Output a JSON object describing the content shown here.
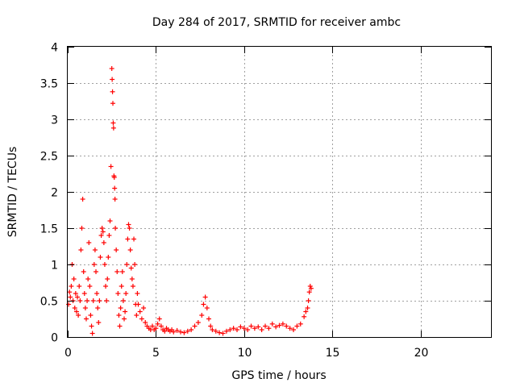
{
  "chart_data": {
    "type": "scatter",
    "title": "Day 284 of 2017, SRMTID for receiver ambc",
    "xlabel": "GPS time / hours",
    "ylabel": "SRMTID / TECUs",
    "xlim": [
      0,
      24
    ],
    "ylim": [
      0,
      4
    ],
    "xticks": [
      0,
      5,
      10,
      15,
      20
    ],
    "yticks": [
      0,
      0.5,
      1,
      1.5,
      2,
      2.5,
      3,
      3.5,
      4
    ],
    "grid": true,
    "marker": "+",
    "color": "#ff0000",
    "series": [
      {
        "name": "SRMTID",
        "points": [
          [
            0.05,
            0.45
          ],
          [
            0.1,
            0.62
          ],
          [
            0.15,
            0.55
          ],
          [
            0.2,
            0.7
          ],
          [
            0.25,
            1.0
          ],
          [
            0.3,
            0.5
          ],
          [
            0.35,
            0.8
          ],
          [
            0.4,
            0.4
          ],
          [
            0.45,
            0.6
          ],
          [
            0.5,
            0.35
          ],
          [
            0.55,
            0.55
          ],
          [
            0.6,
            0.3
          ],
          [
            0.65,
            0.7
          ],
          [
            0.7,
            0.5
          ],
          [
            0.75,
            1.2
          ],
          [
            0.8,
            1.5
          ],
          [
            0.85,
            1.9
          ],
          [
            0.9,
            0.9
          ],
          [
            0.95,
            0.6
          ],
          [
            1.0,
            0.4
          ],
          [
            1.05,
            0.25
          ],
          [
            1.1,
            0.5
          ],
          [
            1.15,
            0.8
          ],
          [
            1.2,
            1.3
          ],
          [
            1.25,
            0.7
          ],
          [
            1.3,
            0.3
          ],
          [
            1.35,
            0.15
          ],
          [
            1.4,
            0.05
          ],
          [
            1.45,
            0.5
          ],
          [
            1.5,
            1.0
          ],
          [
            1.55,
            1.2
          ],
          [
            1.6,
            0.9
          ],
          [
            1.65,
            0.6
          ],
          [
            1.7,
            0.4
          ],
          [
            1.75,
            0.2
          ],
          [
            1.8,
            0.5
          ],
          [
            1.85,
            1.1
          ],
          [
            1.9,
            1.4
          ],
          [
            1.95,
            1.5
          ],
          [
            2.0,
            1.45
          ],
          [
            2.05,
            1.3
          ],
          [
            2.1,
            1.0
          ],
          [
            2.15,
            0.7
          ],
          [
            2.2,
            0.5
          ],
          [
            2.25,
            0.8
          ],
          [
            2.3,
            1.1
          ],
          [
            2.35,
            1.4
          ],
          [
            2.4,
            1.6
          ],
          [
            2.45,
            2.35
          ],
          [
            2.5,
            3.7
          ],
          [
            2.52,
            3.55
          ],
          [
            2.54,
            3.38
          ],
          [
            2.56,
            3.22
          ],
          [
            2.58,
            2.95
          ],
          [
            2.6,
            2.88
          ],
          [
            2.62,
            2.22
          ],
          [
            2.64,
            2.2
          ],
          [
            2.66,
            2.05
          ],
          [
            2.68,
            1.9
          ],
          [
            2.7,
            1.5
          ],
          [
            2.75,
            1.2
          ],
          [
            2.8,
            0.9
          ],
          [
            2.85,
            0.6
          ],
          [
            2.9,
            0.3
          ],
          [
            2.95,
            0.15
          ],
          [
            3.0,
            0.4
          ],
          [
            3.05,
            0.7
          ],
          [
            3.1,
            0.9
          ],
          [
            3.15,
            0.5
          ],
          [
            3.2,
            0.25
          ],
          [
            3.25,
            0.35
          ],
          [
            3.3,
            0.6
          ],
          [
            3.35,
            1.0
          ],
          [
            3.4,
            1.35
          ],
          [
            3.45,
            1.55
          ],
          [
            3.5,
            1.5
          ],
          [
            3.55,
            1.2
          ],
          [
            3.6,
            0.95
          ],
          [
            3.65,
            0.8
          ],
          [
            3.7,
            0.7
          ],
          [
            3.75,
            1.35
          ],
          [
            3.8,
            1.0
          ],
          [
            3.85,
            0.45
          ],
          [
            3.9,
            0.3
          ],
          [
            3.95,
            0.6
          ],
          [
            4.0,
            0.45
          ],
          [
            4.1,
            0.35
          ],
          [
            4.2,
            0.25
          ],
          [
            4.3,
            0.4
          ],
          [
            4.4,
            0.2
          ],
          [
            4.5,
            0.15
          ],
          [
            4.6,
            0.12
          ],
          [
            4.7,
            0.1
          ],
          [
            4.8,
            0.15
          ],
          [
            4.9,
            0.1
          ],
          [
            5.0,
            0.12
          ],
          [
            5.1,
            0.18
          ],
          [
            5.2,
            0.25
          ],
          [
            5.3,
            0.15
          ],
          [
            5.4,
            0.1
          ],
          [
            5.5,
            0.08
          ],
          [
            5.6,
            0.12
          ],
          [
            5.7,
            0.1
          ],
          [
            5.8,
            0.08
          ],
          [
            5.9,
            0.1
          ],
          [
            6.0,
            0.07
          ],
          [
            6.2,
            0.09
          ],
          [
            6.4,
            0.07
          ],
          [
            6.6,
            0.06
          ],
          [
            6.8,
            0.08
          ],
          [
            7.0,
            0.1
          ],
          [
            7.2,
            0.15
          ],
          [
            7.4,
            0.2
          ],
          [
            7.6,
            0.3
          ],
          [
            7.7,
            0.45
          ],
          [
            7.8,
            0.55
          ],
          [
            7.9,
            0.4
          ],
          [
            8.0,
            0.25
          ],
          [
            8.1,
            0.15
          ],
          [
            8.2,
            0.1
          ],
          [
            8.4,
            0.08
          ],
          [
            8.6,
            0.06
          ],
          [
            8.8,
            0.05
          ],
          [
            9.0,
            0.08
          ],
          [
            9.2,
            0.1
          ],
          [
            9.4,
            0.12
          ],
          [
            9.6,
            0.1
          ],
          [
            9.8,
            0.14
          ],
          [
            10.0,
            0.12
          ],
          [
            10.2,
            0.1
          ],
          [
            10.4,
            0.15
          ],
          [
            10.6,
            0.12
          ],
          [
            10.8,
            0.14
          ],
          [
            11.0,
            0.1
          ],
          [
            11.2,
            0.15
          ],
          [
            11.4,
            0.12
          ],
          [
            11.6,
            0.18
          ],
          [
            11.8,
            0.14
          ],
          [
            12.0,
            0.16
          ],
          [
            12.2,
            0.18
          ],
          [
            12.4,
            0.15
          ],
          [
            12.6,
            0.12
          ],
          [
            12.8,
            0.1
          ],
          [
            13.0,
            0.15
          ],
          [
            13.2,
            0.18
          ],
          [
            13.4,
            0.28
          ],
          [
            13.5,
            0.35
          ],
          [
            13.6,
            0.4
          ],
          [
            13.65,
            0.5
          ],
          [
            13.7,
            0.62
          ],
          [
            13.75,
            0.7
          ],
          [
            13.8,
            0.67
          ]
        ]
      }
    ]
  }
}
